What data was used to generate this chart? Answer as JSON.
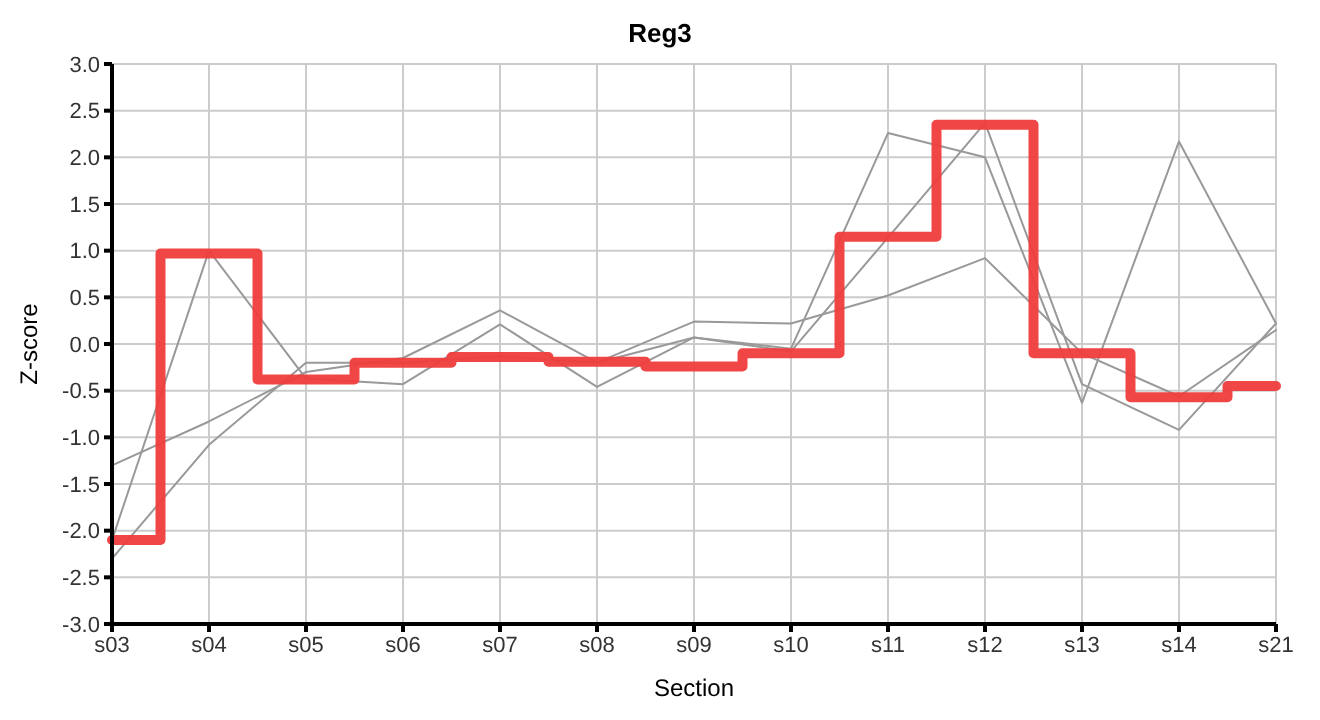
{
  "chart_data": {
    "type": "line",
    "title": "Reg3",
    "xlabel": "Section",
    "ylabel": "Z-score",
    "categories": [
      "s03",
      "s04",
      "s05",
      "s06",
      "s07",
      "s08",
      "s09",
      "s10",
      "s11",
      "s12",
      "s13",
      "s14",
      "s21"
    ],
    "series": [
      {
        "color": "#999999",
        "values": [
          -2.1,
          1.0,
          -0.37,
          -0.43,
          0.21,
          -0.46,
          0.07,
          -0.05,
          2.26,
          2.0,
          -0.63,
          2.17,
          0.22
        ]
      },
      {
        "color": "#999999",
        "values": [
          -1.3,
          -0.83,
          -0.3,
          -0.15,
          0.36,
          -0.2,
          0.24,
          0.22,
          0.52,
          0.92,
          -0.1,
          -0.56,
          0.15
        ]
      },
      {
        "color": "#999999",
        "values": [
          -2.3,
          -1.08,
          -0.2,
          -0.2,
          -0.13,
          -0.2,
          0.07,
          -0.08,
          1.14,
          2.37,
          -0.43,
          -0.92,
          0.22
        ]
      },
      {
        "type": "step",
        "color": "#f03c3c",
        "values": [
          -2.1,
          0.97,
          -0.38,
          -0.2,
          -0.14,
          -0.19,
          -0.24,
          -0.1,
          1.15,
          2.35,
          -0.1,
          -0.57,
          -0.45
        ]
      }
    ],
    "ylim": [
      -3,
      3
    ],
    "yticks": [
      {
        "value": -3,
        "label": "-3.0"
      },
      {
        "value": -2.5,
        "label": "-2.5"
      },
      {
        "value": -2,
        "label": "-2.0"
      },
      {
        "value": -1.5,
        "label": "-1.5"
      },
      {
        "value": -1,
        "label": "-1.0"
      },
      {
        "value": -0.5,
        "label": "-0.5"
      },
      {
        "value": 0,
        "label": "0.0"
      },
      {
        "value": 0.5,
        "label": "0.5"
      },
      {
        "value": 1,
        "label": "1.0"
      },
      {
        "value": 1.5,
        "label": "1.5"
      },
      {
        "value": 2,
        "label": "2.0"
      },
      {
        "value": 2.5,
        "label": "2.5"
      },
      {
        "value": 3,
        "label": "3.0"
      }
    ],
    "grid": true,
    "marker": "none",
    "line_style": "solid",
    "legend": false
  }
}
